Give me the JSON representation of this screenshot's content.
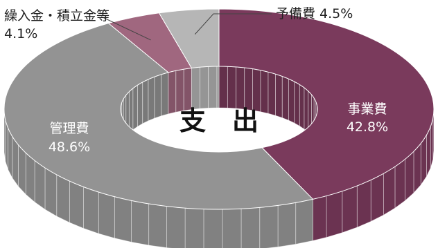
{
  "chart_data": {
    "type": "pie",
    "subtype": "3d-donut",
    "title": "",
    "center_label": "支　出",
    "slices": [
      {
        "name": "事業費",
        "value": 42.8,
        "value_label": "42.8%",
        "color": "#7a3a5c"
      },
      {
        "name": "管理費",
        "value": 48.6,
        "value_label": "48.6%",
        "color": "#939393"
      },
      {
        "name": "繰入金・積立金等",
        "value": 4.1,
        "value_label": "4.1%",
        "color": "#a0677f"
      },
      {
        "name": "予備費",
        "value": 4.5,
        "value_label": "4.5%",
        "color": "#b6b6b6"
      }
    ]
  }
}
